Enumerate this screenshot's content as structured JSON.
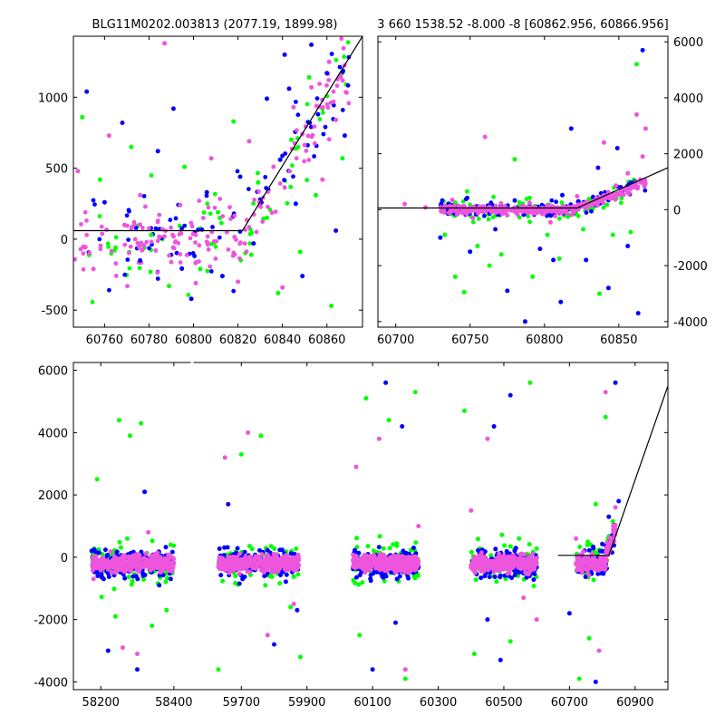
{
  "title_left": "BLG11M0202.003813 (2077.19, 1899.98)",
  "title_right": "3 660 1538.52 -8.000 -8 [60862.956, 60866.956]",
  "colors": {
    "green": "#00ff00",
    "blue": "#0000ff",
    "pink": "#ee55dd",
    "axis": "#000000",
    "model": "#000000"
  },
  "chart_data": [
    {
      "type": "scatter",
      "name_ref": "top-left zoom",
      "xlim": [
        60746,
        60876
      ],
      "ylim": [
        -620,
        1430
      ],
      "xticks": [
        "60760",
        "60780",
        "60800",
        "60820",
        "60840",
        "60860"
      ],
      "xtick_values": [
        60760,
        60780,
        60800,
        60820,
        60840,
        60860
      ],
      "yticks": [
        "-500",
        "0",
        "500",
        "1000"
      ],
      "ytick_values": [
        -500,
        0,
        500,
        1000
      ],
      "model_line": [
        [
          60746,
          60
        ],
        [
          60822,
          60
        ],
        [
          60876,
          1430
        ]
      ],
      "series": [
        {
          "color": "green",
          "points": [
            [
              60750,
              860
            ],
            [
              60758,
              420
            ],
            [
              60765,
              -60
            ],
            [
              60772,
              650
            ],
            [
              60781,
              30
            ],
            [
              60789,
              -330
            ],
            [
              60796,
              510
            ],
            [
              60803,
              -210
            ],
            [
              60811,
              190
            ],
            [
              60818,
              830
            ],
            [
              60826,
              -110
            ],
            [
              60829,
              400
            ],
            [
              60833,
              150
            ],
            [
              60838,
              -380
            ],
            [
              60844,
              700
            ],
            [
              60848,
              -90
            ],
            [
              60852,
              1140
            ],
            [
              60855,
              310
            ],
            [
              60862,
              -470
            ],
            [
              60867,
              570
            ]
          ]
        },
        {
          "color": "blue",
          "points": [
            [
              60752,
              1040
            ],
            [
              60760,
              260
            ],
            [
              60768,
              820
            ],
            [
              60776,
              -150
            ],
            [
              60784,
              620
            ],
            [
              60791,
              920
            ],
            [
              60799,
              -420
            ],
            [
              60806,
              330
            ],
            [
              60813,
              -260
            ],
            [
              60821,
              440
            ],
            [
              60827,
              -30
            ],
            [
              60833,
              990
            ],
            [
              60839,
              560
            ],
            [
              60841,
              1300
            ],
            [
              60843,
              1060
            ],
            [
              60846,
              250
            ],
            [
              60849,
              -260
            ],
            [
              60853,
              1370
            ],
            [
              60856,
              880
            ],
            [
              60860,
              1170
            ],
            [
              60864,
              60
            ],
            [
              60868,
              730
            ]
          ]
        },
        {
          "color": "pink",
          "points": [
            [
              60748,
              480
            ],
            [
              60755,
              -210
            ],
            [
              60762,
              730
            ],
            [
              60769,
              100
            ],
            [
              60776,
              310
            ],
            [
              60783,
              -80
            ],
            [
              60787,
              1380
            ],
            [
              60794,
              240
            ],
            [
              60801,
              -310
            ],
            [
              60808,
              570
            ],
            [
              60815,
              50
            ],
            [
              60820,
              -300
            ],
            [
              60825,
              690
            ],
            [
              60830,
              230
            ],
            [
              60836,
              510
            ],
            [
              60840,
              -340
            ],
            [
              60845,
              930
            ],
            [
              60849,
              740
            ],
            [
              60853,
              1070
            ],
            [
              60858,
              420
            ],
            [
              60861,
              1250
            ],
            [
              60864,
              840
            ],
            [
              60866,
              1150
            ]
          ]
        }
      ]
    },
    {
      "type": "scatter",
      "name_ref": "top-right context",
      "xlim": [
        60688,
        60883
      ],
      "ylim": [
        -4200,
        6200
      ],
      "xticks": [
        "60700",
        "60750",
        "60800",
        "60850"
      ],
      "xtick_values": [
        60700,
        60750,
        60800,
        60850
      ],
      "yticks": [
        "-4000",
        "-2000",
        "0",
        "2000",
        "4000",
        "6000"
      ],
      "ytick_values": [
        -4000,
        -2000,
        0,
        2000,
        4000,
        6000
      ],
      "model_line": [
        [
          60688,
          60
        ],
        [
          60822,
          60
        ],
        [
          60883,
          1500
        ]
      ],
      "series": [
        {
          "color": "green",
          "points": [
            [
              60733,
              -900
            ],
            [
              60740,
              -2400
            ],
            [
              60746,
              -2950
            ],
            [
              60755,
              -1300
            ],
            [
              60763,
              -2000
            ],
            [
              60771,
              -1600
            ],
            [
              60780,
              1800
            ],
            [
              60792,
              -2400
            ],
            [
              60802,
              -900
            ],
            [
              60810,
              -1750
            ],
            [
              60826,
              -700
            ],
            [
              60837,
              -3000
            ],
            [
              60846,
              -900
            ],
            [
              60858,
              -800
            ],
            [
              60862,
              5200
            ],
            [
              60748,
              650
            ],
            [
              60790,
              420
            ],
            [
              60830,
              380
            ]
          ]
        },
        {
          "color": "blue",
          "points": [
            [
              60730,
              -1000
            ],
            [
              60750,
              -1500
            ],
            [
              60767,
              -700
            ],
            [
              60775,
              -2900
            ],
            [
              60787,
              -4000
            ],
            [
              60797,
              -1400
            ],
            [
              60806,
              -1800
            ],
            [
              60811,
              -3300
            ],
            [
              60818,
              2900
            ],
            [
              60828,
              -1800
            ],
            [
              60836,
              1500
            ],
            [
              60843,
              -2800
            ],
            [
              60849,
              2200
            ],
            [
              60856,
              -1300
            ],
            [
              60863,
              -3700
            ],
            [
              60866,
              5700
            ],
            [
              60748,
              420
            ],
            [
              60780,
              330
            ],
            [
              60812,
              520
            ]
          ]
        },
        {
          "color": "pink",
          "points": [
            [
              60706,
              200
            ],
            [
              60720,
              80
            ],
            [
              60738,
              350
            ],
            [
              60752,
              -300
            ],
            [
              60760,
              2600
            ],
            [
              60775,
              -200
            ],
            [
              60790,
              250
            ],
            [
              60804,
              -450
            ],
            [
              60812,
              80
            ],
            [
              60822,
              480
            ],
            [
              60832,
              200
            ],
            [
              60840,
              2400
            ],
            [
              60848,
              850
            ],
            [
              60856,
              1300
            ],
            [
              60862,
              3400
            ],
            [
              60866,
              1900
            ],
            [
              60868,
              2900
            ]
          ]
        }
      ]
    },
    {
      "type": "scatter",
      "name_ref": "bottom full light curve",
      "xlim": [
        58125,
        61000
      ],
      "ylim": [
        -4250,
        6250
      ],
      "xticks": [
        "58200",
        "58400",
        "59700",
        "59900",
        "60100",
        "60300",
        "60500",
        "60700",
        "60900"
      ],
      "yticks": [
        "-4000",
        "-2000",
        "0",
        "2000",
        "4000",
        "6000"
      ],
      "ytick_values": [
        -4000,
        -2000,
        0,
        2000,
        4000,
        6000
      ],
      "model_line": [
        [
          60665,
          60
        ],
        [
          60820,
          60
        ],
        [
          61000,
          5500
        ]
      ],
      "series": [
        {
          "color": "green",
          "points": [
            [
              58250,
              4400
            ],
            [
              58280,
              3900
            ],
            [
              58310,
              4300
            ],
            [
              58190,
              2500
            ],
            [
              58240,
              -1900
            ],
            [
              58340,
              -2200
            ],
            [
              58380,
              -1700
            ],
            [
              59700,
              3300
            ],
            [
              59760,
              3900
            ],
            [
              59850,
              -1600
            ],
            [
              59880,
              -3200
            ],
            [
              59630,
              -3600
            ],
            [
              60080,
              5100
            ],
            [
              60150,
              4400
            ],
            [
              60200,
              -3900
            ],
            [
              60060,
              -2500
            ],
            [
              60230,
              5300
            ],
            [
              60380,
              4700
            ],
            [
              60520,
              -2700
            ],
            [
              60580,
              5600
            ],
            [
              60410,
              -3100
            ],
            [
              60760,
              -2600
            ],
            [
              60780,
              1700
            ],
            [
              60810,
              4500
            ],
            [
              60730,
              -3900
            ]
          ]
        },
        {
          "color": "blue",
          "points": [
            [
              58220,
              -3000
            ],
            [
              58300,
              -3600
            ],
            [
              58320,
              2100
            ],
            [
              58360,
              -900
            ],
            [
              59660,
              1700
            ],
            [
              59800,
              -2800
            ],
            [
              59870,
              -1700
            ],
            [
              60100,
              -3600
            ],
            [
              60140,
              5600
            ],
            [
              60190,
              4200
            ],
            [
              60170,
              -2100
            ],
            [
              60470,
              4200
            ],
            [
              60490,
              -3300
            ],
            [
              60520,
              5200
            ],
            [
              60450,
              -2000
            ],
            [
              60700,
              -1800
            ],
            [
              60780,
              -4000
            ],
            [
              60840,
              5600
            ],
            [
              60850,
              1800
            ],
            [
              60820,
              1300
            ]
          ]
        },
        {
          "color": "pink",
          "points": [
            [
              58180,
              -700
            ],
            [
              58260,
              -2900
            ],
            [
              58300,
              -3100
            ],
            [
              58330,
              800
            ],
            [
              59650,
              3200
            ],
            [
              59720,
              4000
            ],
            [
              59780,
              -2500
            ],
            [
              59860,
              -1500
            ],
            [
              60050,
              2900
            ],
            [
              60120,
              3800
            ],
            [
              60200,
              -3600
            ],
            [
              60240,
              1000
            ],
            [
              60400,
              1500
            ],
            [
              60450,
              3800
            ],
            [
              60560,
              -1300
            ],
            [
              60600,
              -2000
            ],
            [
              60720,
              600
            ],
            [
              60790,
              -3000
            ],
            [
              60810,
              5300
            ],
            [
              60840,
              1600
            ]
          ]
        }
      ]
    }
  ]
}
